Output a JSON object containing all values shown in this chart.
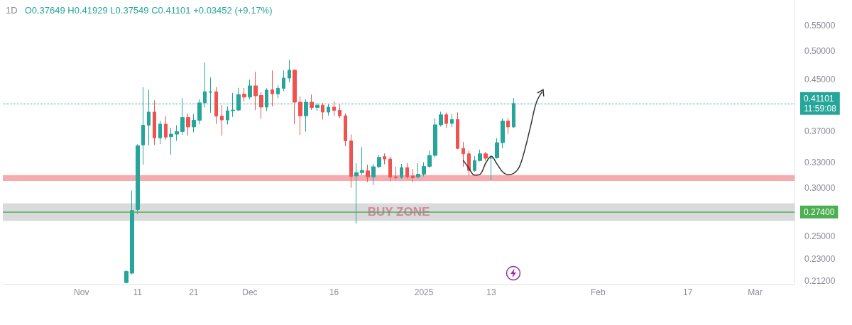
{
  "chart_data": {
    "type": "candlestick",
    "title": "1D",
    "subtitle": "O0.37649 H0.41929 L0.37549 C0.41101 +0.03452 (+9.17%)",
    "x": [
      "2024-11-09",
      "2024-11-10",
      "2024-11-11",
      "2024-11-12",
      "2024-11-13",
      "2024-11-14",
      "2024-11-15",
      "2024-11-16",
      "2024-11-17",
      "2024-11-18",
      "2024-11-19",
      "2024-11-20",
      "2024-11-21",
      "2024-11-22",
      "2024-11-23",
      "2024-11-24",
      "2024-11-25",
      "2024-11-26",
      "2024-11-27",
      "2024-11-28",
      "2024-11-29",
      "2024-11-30",
      "2024-12-01",
      "2024-12-02",
      "2024-12-03",
      "2024-12-04",
      "2024-12-05",
      "2024-12-06",
      "2024-12-07",
      "2024-12-08",
      "2024-12-09",
      "2024-12-10",
      "2024-12-11",
      "2024-12-12",
      "2024-12-13",
      "2024-12-14",
      "2024-12-15",
      "2024-12-16",
      "2024-12-17",
      "2024-12-18",
      "2024-12-19",
      "2024-12-20",
      "2024-12-21",
      "2024-12-22",
      "2024-12-23",
      "2024-12-24",
      "2024-12-25",
      "2024-12-26",
      "2024-12-27",
      "2024-12-28",
      "2024-12-29",
      "2024-12-30",
      "2024-12-31",
      "2025-01-01",
      "2025-01-02",
      "2025-01-03",
      "2025-01-04",
      "2025-01-05",
      "2025-01-06",
      "2025-01-07",
      "2025-01-08",
      "2025-01-09",
      "2025-01-10",
      "2025-01-11",
      "2025-01-12",
      "2025-01-13",
      "2025-01-14",
      "2025-01-15",
      "2025-01-16",
      "2025-01-17"
    ],
    "ohlc": [
      [
        0.2105,
        0.2205,
        0.2098,
        0.2195
      ],
      [
        0.218,
        0.297,
        0.217,
        0.2755
      ],
      [
        0.2765,
        0.353,
        0.272,
        0.351
      ],
      [
        0.352,
        0.437,
        0.327,
        0.379
      ],
      [
        0.379,
        0.433,
        0.351,
        0.398
      ],
      [
        0.398,
        0.416,
        0.352,
        0.3615
      ],
      [
        0.3615,
        0.385,
        0.353,
        0.3805
      ],
      [
        0.3805,
        0.3915,
        0.359,
        0.3625
      ],
      [
        0.363,
        0.3755,
        0.3395,
        0.3665
      ],
      [
        0.3665,
        0.379,
        0.3575,
        0.37
      ],
      [
        0.37,
        0.419,
        0.3655,
        0.39
      ],
      [
        0.39,
        0.396,
        0.3645,
        0.3765
      ],
      [
        0.3765,
        0.395,
        0.369,
        0.386
      ],
      [
        0.386,
        0.4175,
        0.3805,
        0.412
      ],
      [
        0.412,
        0.479,
        0.405,
        0.4295
      ],
      [
        0.4285,
        0.453,
        0.397,
        0.4295
      ],
      [
        0.4295,
        0.437,
        0.3805,
        0.392
      ],
      [
        0.392,
        0.4085,
        0.3645,
        0.3865
      ],
      [
        0.3865,
        0.4065,
        0.38,
        0.4
      ],
      [
        0.4,
        0.4275,
        0.391,
        0.401
      ],
      [
        0.401,
        0.436,
        0.3995,
        0.425
      ],
      [
        0.4255,
        0.4355,
        0.414,
        0.421
      ],
      [
        0.421,
        0.4495,
        0.4175,
        0.439
      ],
      [
        0.439,
        0.463,
        0.401,
        0.423
      ],
      [
        0.4235,
        0.4285,
        0.388,
        0.4055
      ],
      [
        0.4055,
        0.435,
        0.3995,
        0.432
      ],
      [
        0.4325,
        0.465,
        0.4065,
        0.426
      ],
      [
        0.426,
        0.44,
        0.419,
        0.435
      ],
      [
        0.435,
        0.465,
        0.4305,
        0.452
      ],
      [
        0.452,
        0.484,
        0.4445,
        0.4655
      ],
      [
        0.4655,
        0.466,
        0.3805,
        0.413
      ],
      [
        0.413,
        0.422,
        0.3655,
        0.3925
      ],
      [
        0.3925,
        0.4175,
        0.37,
        0.413
      ],
      [
        0.413,
        0.425,
        0.401,
        0.405
      ],
      [
        0.405,
        0.412,
        0.3995,
        0.4085
      ],
      [
        0.4085,
        0.412,
        0.387,
        0.398
      ],
      [
        0.398,
        0.41,
        0.393,
        0.4055
      ],
      [
        0.4055,
        0.4145,
        0.3925,
        0.4005
      ],
      [
        0.4005,
        0.41,
        0.3895,
        0.3925
      ],
      [
        0.3925,
        0.396,
        0.3505,
        0.3575
      ],
      [
        0.3575,
        0.366,
        0.3,
        0.313
      ],
      [
        0.3135,
        0.329,
        0.2625,
        0.3175
      ],
      [
        0.3175,
        0.349,
        0.3145,
        0.32
      ],
      [
        0.3195,
        0.327,
        0.3065,
        0.3125
      ],
      [
        0.3125,
        0.328,
        0.303,
        0.3245
      ],
      [
        0.3245,
        0.339,
        0.323,
        0.336
      ],
      [
        0.337,
        0.341,
        0.3275,
        0.334
      ],
      [
        0.334,
        0.337,
        0.3075,
        0.312
      ],
      [
        0.3125,
        0.3245,
        0.309,
        0.3115
      ],
      [
        0.312,
        0.328,
        0.3105,
        0.3235
      ],
      [
        0.3235,
        0.329,
        0.3105,
        0.3125
      ],
      [
        0.3135,
        0.322,
        0.3065,
        0.3115
      ],
      [
        0.3125,
        0.329,
        0.3105,
        0.3155
      ],
      [
        0.3155,
        0.33,
        0.313,
        0.325
      ],
      [
        0.325,
        0.3445,
        0.323,
        0.3385
      ],
      [
        0.3385,
        0.389,
        0.336,
        0.3795
      ],
      [
        0.3795,
        0.3985,
        0.377,
        0.394
      ],
      [
        0.394,
        0.3975,
        0.375,
        0.3815
      ],
      [
        0.3815,
        0.395,
        0.376,
        0.387
      ],
      [
        0.387,
        0.3975,
        0.3465,
        0.3475
      ],
      [
        0.3475,
        0.356,
        0.3245,
        0.3405
      ],
      [
        0.3405,
        0.345,
        0.314,
        0.32
      ],
      [
        0.32,
        0.3375,
        0.3185,
        0.332
      ],
      [
        0.332,
        0.346,
        0.331,
        0.3405
      ],
      [
        0.3405,
        0.343,
        0.332,
        0.335
      ],
      [
        0.335,
        0.3375,
        0.309,
        0.3355
      ],
      [
        0.3355,
        0.361,
        0.3345,
        0.355
      ],
      [
        0.355,
        0.389,
        0.3475,
        0.385
      ],
      [
        0.385,
        0.389,
        0.367,
        0.3765
      ],
      [
        0.37649,
        0.41929,
        0.37549,
        0.41101
      ]
    ],
    "colors": [
      "#26a69a",
      "#26a69a",
      "#26a69a",
      "#26a69a",
      "#26a69a",
      "#ef5350",
      "#26a69a",
      "#ef5350",
      "#26a69a",
      "#26a69a",
      "#26a69a",
      "#ef5350",
      "#26a69a",
      "#26a69a",
      "#26a69a",
      "#26a69a",
      "#ef5350",
      "#ef5350",
      "#26a69a",
      "#26a69a",
      "#26a69a",
      "#ef5350",
      "#26a69a",
      "#ef5350",
      "#ef5350",
      "#26a69a",
      "#ef5350",
      "#26a69a",
      "#26a69a",
      "#26a69a",
      "#ef5350",
      "#ef5350",
      "#26a69a",
      "#ef5350",
      "#26a69a",
      "#ef5350",
      "#26a69a",
      "#ef5350",
      "#ef5350",
      "#ef5350",
      "#ef5350",
      "#26a69a",
      "#26a69a",
      "#ef5350",
      "#26a69a",
      "#26a69a",
      "#ef5350",
      "#ef5350",
      "#ef5350",
      "#26a69a",
      "#ef5350",
      "#ef5350",
      "#26a69a",
      "#26a69a",
      "#26a69a",
      "#26a69a",
      "#26a69a",
      "#ef5350",
      "#26a69a",
      "#ef5350",
      "#ef5350",
      "#ef5350",
      "#26a69a",
      "#26a69a",
      "#ef5350",
      "#26a69a",
      "#26a69a",
      "#26a69a",
      "#ef5350",
      "#26a69a"
    ],
    "series": [
      {
        "type": "line",
        "x": [
          "2025-01-08",
          "2025-01-09",
          "2025-01-10",
          "2025-01-11",
          "2025-01-12",
          "2025-01-13",
          "2025-01-14",
          "2025-01-15",
          "2025-01-16",
          "2025-01-17",
          "2025-01-18",
          "2025-01-19",
          "2025-01-20",
          "2025-01-21",
          "2025-01-22"
        ],
        "values": [
          0.3324,
          0.3228,
          0.3145,
          0.3155,
          0.3288,
          0.3377,
          0.328,
          0.3185,
          0.315,
          0.3166,
          0.3245,
          0.3467,
          0.3775,
          0.412,
          0.4287
        ],
        "color": "#333333",
        "marker": "none",
        "line_style": "solid"
      }
    ],
    "xlim": [
      "2024-10-18",
      "2025-03-08"
    ],
    "xticks": [
      {
        "value": "2024-11-01",
        "label": "Nov"
      },
      {
        "value": "2024-11-11",
        "label": "11"
      },
      {
        "value": "2024-11-21",
        "label": "21"
      },
      {
        "value": "2024-12-01",
        "label": "Dec"
      },
      {
        "value": "2024-12-16",
        "label": "16"
      },
      {
        "value": "2025-01-01",
        "label": "2025"
      },
      {
        "value": "2025-01-13",
        "label": "13"
      },
      {
        "value": "2025-02-01",
        "label": "Feb"
      },
      {
        "value": "2025-02-17",
        "label": "17"
      },
      {
        "value": "2025-03-01",
        "label": "Mar"
      }
    ],
    "ylim": [
      0.2095,
      0.605
    ],
    "yticks": [
      {
        "value": 0.212,
        "label": "0.21200"
      },
      {
        "value": 0.23,
        "label": "0.23000"
      },
      {
        "value": 0.25,
        "label": "0.25000"
      },
      {
        "value": 0.3,
        "label": "0.30000"
      },
      {
        "value": 0.33,
        "label": "0.33000"
      },
      {
        "value": 0.37,
        "label": "0.37000"
      },
      {
        "value": 0.45,
        "label": "0.45000"
      },
      {
        "value": 0.5,
        "label": "0.50000"
      },
      {
        "value": 0.55,
        "label": "0.55000"
      }
    ],
    "log": "y",
    "grid": false,
    "ref_lines": [
      {
        "axis": "y",
        "value": 0.41101,
        "label": "0.41101\n11:59:08",
        "color": "#26a69a",
        "line_style": "dotted"
      },
      {
        "axis": "y",
        "value": 0.274,
        "label": "0.27400",
        "color": "#4caf50",
        "line_style": "solid"
      }
    ],
    "bands": [
      {
        "axis": "y",
        "from": 0.265,
        "to": 0.283,
        "label": "BUY ZONE",
        "color": "#d6d6d8"
      },
      {
        "axis": "y",
        "from": 0.3077,
        "to": 0.3146,
        "color": "#f5a3a6"
      }
    ]
  }
}
